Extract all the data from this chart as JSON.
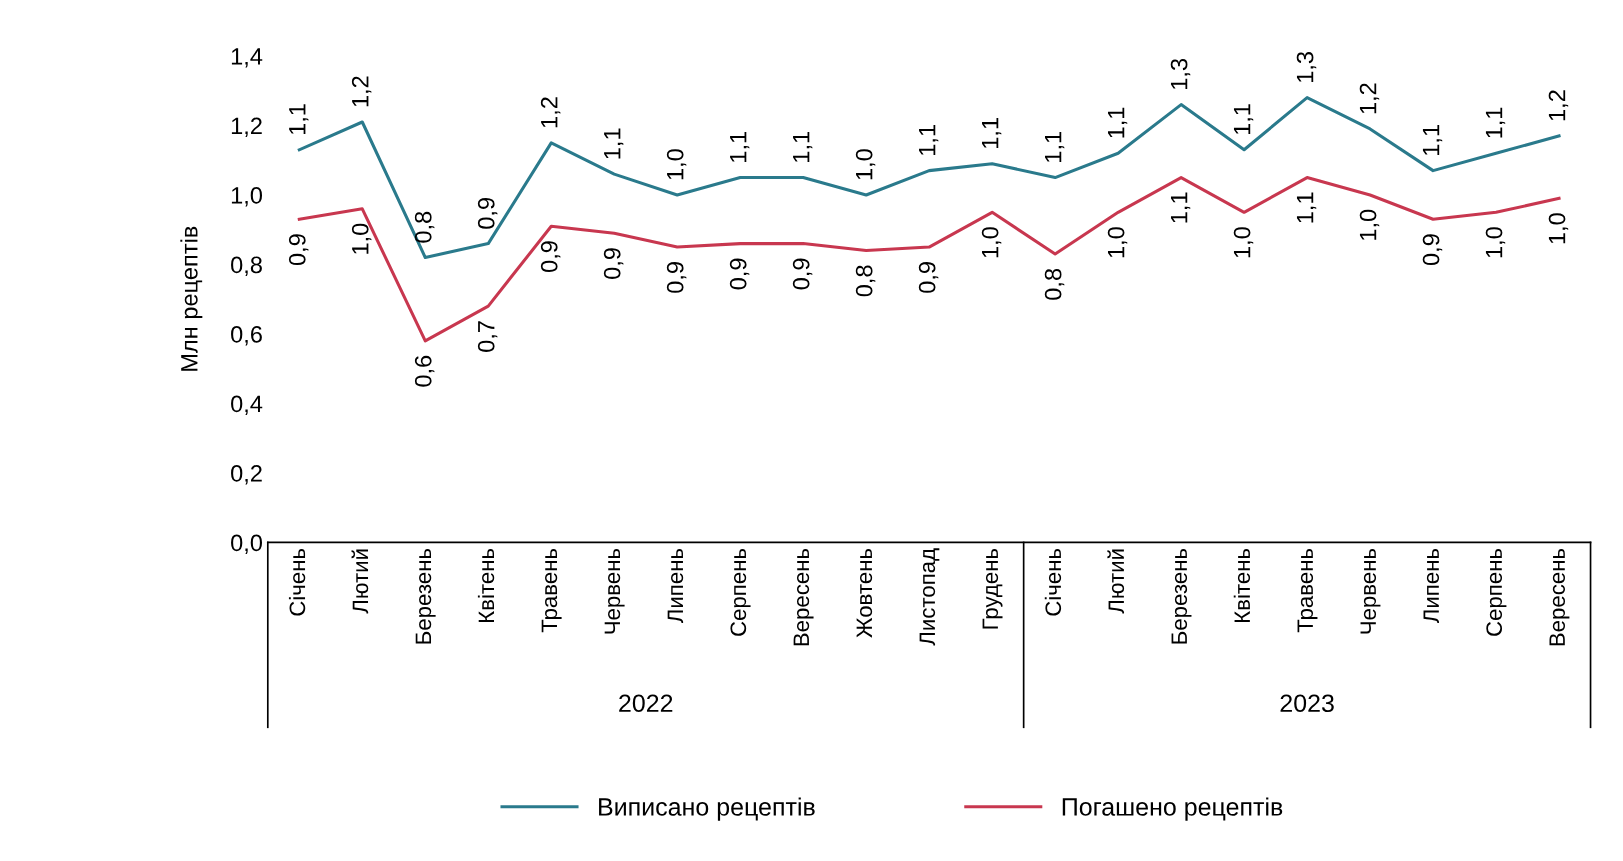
{
  "chart_data": {
    "type": "line",
    "ylabel": "Млн рецептів",
    "categories": [
      "Січень",
      "Лютий",
      "Березень",
      "Квітень",
      "Травень",
      "Червень",
      "Липень",
      "Серпень",
      "Вересень",
      "Жовтень",
      "Листопад",
      "Грудень",
      "Січень",
      "Лютий",
      "Березень",
      "Квітень",
      "Травень",
      "Червень",
      "Липень",
      "Серпень",
      "Вересень"
    ],
    "series": [
      {
        "name": "Виписано рецептів",
        "color": "#2a7a8c",
        "values": [
          1.13,
          1.21,
          0.82,
          0.86,
          1.15,
          1.06,
          1.0,
          1.05,
          1.05,
          1.0,
          1.07,
          1.09,
          1.05,
          1.12,
          1.26,
          1.13,
          1.28,
          1.19,
          1.07,
          1.12,
          1.17
        ],
        "value_labels": [
          "1,1",
          "1,2",
          "0,8",
          "0,9",
          "1,2",
          "1,1",
          "1,0",
          "1,1",
          "1,1",
          "1,0",
          "1,1",
          "1,1",
          "1,1",
          "1,1",
          "1,3",
          "1,1",
          "1,3",
          "1,2",
          "1,1",
          "1,1",
          "1,2"
        ]
      },
      {
        "name": "Погашено рецептів",
        "color": "#c8374f",
        "values": [
          0.93,
          0.96,
          0.58,
          0.68,
          0.91,
          0.89,
          0.85,
          0.86,
          0.86,
          0.84,
          0.85,
          0.95,
          0.83,
          0.95,
          1.05,
          0.95,
          1.05,
          1.0,
          0.93,
          0.95,
          0.99
        ],
        "value_labels": [
          "0,9",
          "1,0",
          "0,6",
          "0,7",
          "0,9",
          "0,9",
          "0,9",
          "0,9",
          "0,9",
          "0,8",
          "0,9",
          "1,0",
          "0,8",
          "1,0",
          "1,1",
          "1,0",
          "1,1",
          "1,0",
          "0,9",
          "1,0",
          "1,0"
        ]
      }
    ],
    "annotations": [
      "2022",
      "2023"
    ],
    "ylim": [
      0,
      1.4
    ],
    "yticks": [
      {
        "value": 0,
        "label": "0,0"
      },
      {
        "value": 0.2,
        "label": "0,2"
      },
      {
        "value": 0.4,
        "label": "0,4"
      },
      {
        "value": 0.6,
        "label": "0,6"
      },
      {
        "value": 0.8,
        "label": "0,8"
      },
      {
        "value": 1.0,
        "label": "1,0"
      },
      {
        "value": 1.2,
        "label": "1,2"
      },
      {
        "value": 1.4,
        "label": "1,4"
      }
    ],
    "grid": false,
    "legend": "bottom",
    "marker": "none",
    "line_style": "solid"
  }
}
